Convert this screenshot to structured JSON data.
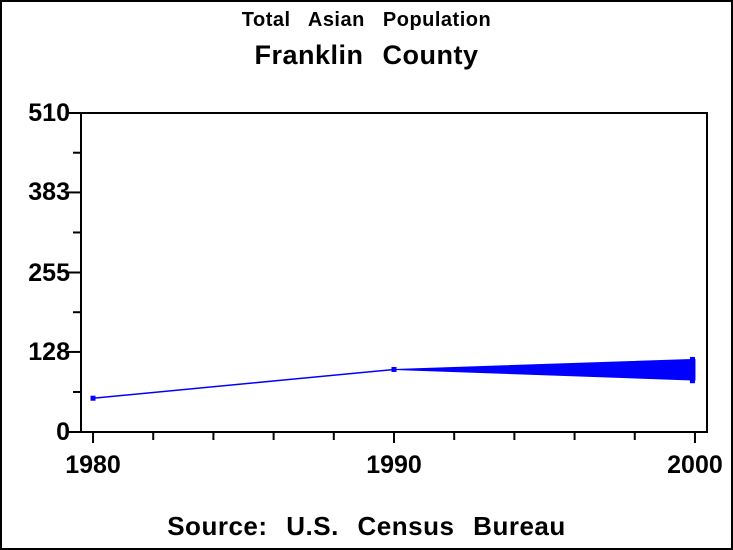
{
  "chart_data": {
    "type": "line",
    "title": "Total Asian Population",
    "subtitle": "Franklin County",
    "source": "Source: U.S. Census Bureau",
    "xlabel": "",
    "ylabel": "",
    "x_ticks": [
      1980,
      1990,
      2000
    ],
    "x_minor_interval": 2,
    "y_ticks": [
      0,
      128,
      255,
      383,
      510
    ],
    "xlim": [
      1979.6,
      2000.4
    ],
    "ylim": [
      0,
      510
    ],
    "grid": false,
    "legend": "none",
    "line_color": "#0000ff",
    "frame_color": "#000000",
    "background_color": "#ffffff",
    "series": [
      {
        "name": "Total Asian population",
        "marker": "square",
        "x": [
          1980,
          1990
        ],
        "y": [
          54,
          100
        ]
      }
    ],
    "projection_fan": {
      "description": "solid blue wedge widening from the 1990 point to a range of values at 2000, with a vertical end cap",
      "apex": {
        "x": 1990,
        "y": 100
      },
      "end_x": 2000,
      "end_high": 116,
      "end_low": 83,
      "endcap_high": 120,
      "endcap_low": 78
    }
  }
}
